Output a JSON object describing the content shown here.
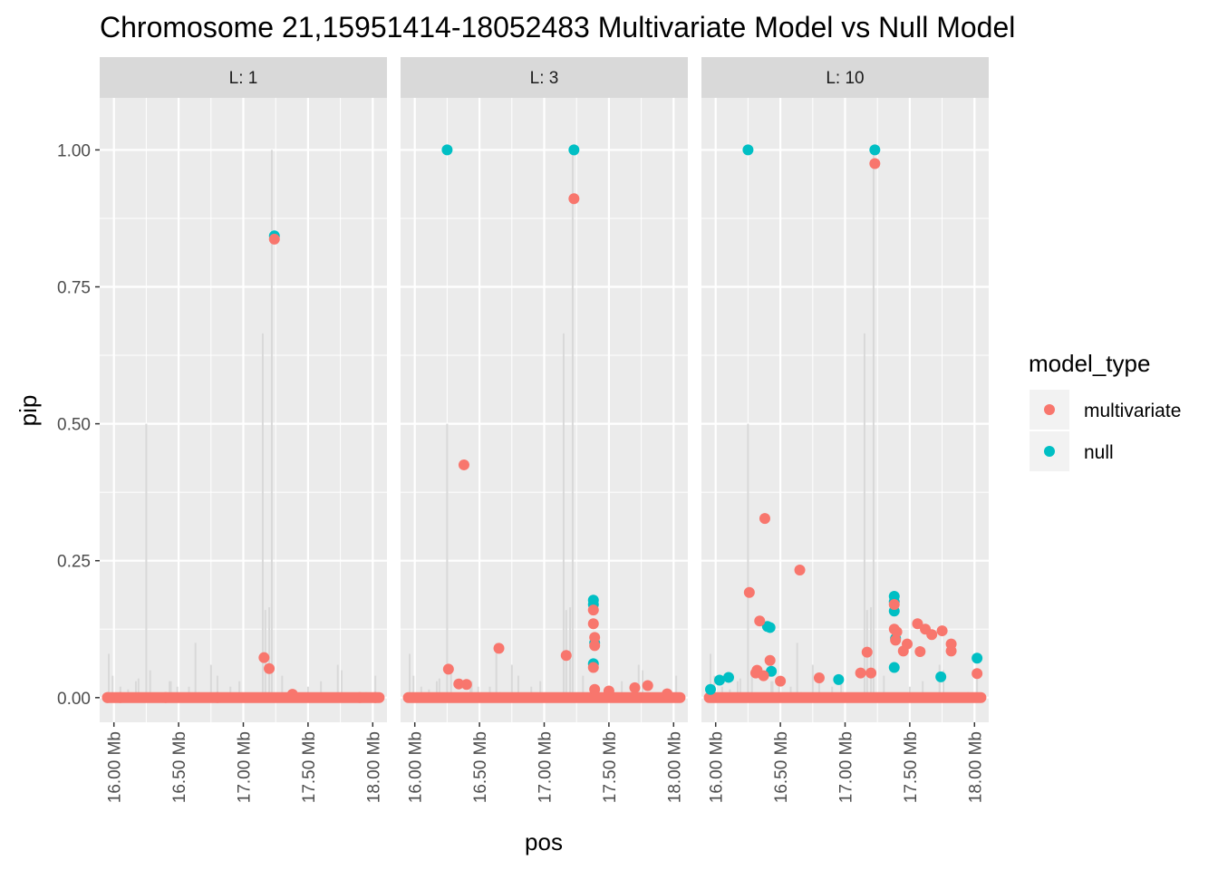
{
  "chart_data": {
    "type": "scatter",
    "title": "Chromosome 21,15951414-18052483 Multivariate Model vs Null Model",
    "xlabel": "pos",
    "ylabel": "pip",
    "xlim_mb": [
      15.89,
      18.11
    ],
    "ylim": [
      -0.045,
      1.095
    ],
    "x_ticks": [
      16.0,
      16.5,
      17.0,
      17.5,
      18.0
    ],
    "x_tick_labels": [
      "16.00 Mb",
      "16.50 Mb",
      "17.00 Mb",
      "17.50 Mb",
      "18.00 Mb"
    ],
    "y_ticks": [
      0,
      0.25,
      0.5,
      0.75,
      1.0
    ],
    "y_tick_labels": [
      "0.00",
      "0.25",
      "0.50",
      "0.75",
      "1.00"
    ],
    "grid": true,
    "legend": {
      "title": "model_type",
      "position": "right",
      "entries": [
        {
          "name": "multivariate",
          "color": "#F8766D"
        },
        {
          "name": "null",
          "color": "#00BFC4"
        }
      ]
    },
    "background_lines": {
      "color": "#d9d9d9",
      "x": [
        15.96,
        15.99,
        16.05,
        16.11,
        16.17,
        16.19,
        16.25,
        16.28,
        16.43,
        16.44,
        16.49,
        16.58,
        16.63,
        16.66,
        16.75,
        16.8,
        16.9,
        16.97,
        17.15,
        17.17,
        17.2,
        17.22,
        17.3,
        17.5,
        17.6,
        17.73,
        17.76,
        17.95,
        18.02
      ],
      "y": [
        0.08,
        0.04,
        0.02,
        0.015,
        0.03,
        0.035,
        0.5,
        0.05,
        0.03,
        0.03,
        0.02,
        0.02,
        0.1,
        0.01,
        0.06,
        0.04,
        0.02,
        0.03,
        0.665,
        0.16,
        0.165,
        1.0,
        0.04,
        0.02,
        0.03,
        0.06,
        0.05,
        0.01,
        0.04
      ]
    },
    "facets": [
      {
        "label": "L: 1",
        "series": [
          {
            "name": "multivariate",
            "x": [
              15.95,
              16.05,
              16.4,
              16.8,
              17.16,
              17.2,
              17.24,
              17.38,
              17.9,
              18.02
            ],
            "y": [
              0.0,
              0.0,
              0.0,
              0.0,
              0.073,
              0.053,
              0.837,
              0.006,
              0.0,
              0.0
            ]
          },
          {
            "name": "null",
            "x": [
              17.24
            ],
            "y": [
              0.843
            ]
          }
        ]
      },
      {
        "label": "L: 3",
        "series": [
          {
            "name": "multivariate",
            "x": [
              16.26,
              16.34,
              16.38,
              16.4,
              16.65,
              17.17,
              17.23,
              17.38,
              17.38,
              17.39,
              17.39,
              17.38,
              17.39,
              17.5,
              17.7,
              17.8,
              17.95
            ],
            "y": [
              0.052,
              0.025,
              0.425,
              0.024,
              0.09,
              0.077,
              0.911,
              0.16,
              0.135,
              0.11,
              0.095,
              0.055,
              0.015,
              0.012,
              0.018,
              0.022,
              0.007
            ]
          },
          {
            "name": "null",
            "x": [
              16.25,
              17.23,
              17.38,
              17.38,
              17.39,
              17.38
            ],
            "y": [
              1.0,
              1.0,
              0.178,
              0.17,
              0.1,
              0.062
            ]
          }
        ]
      },
      {
        "label": "L: 10",
        "series": [
          {
            "name": "multivariate",
            "x": [
              16.26,
              16.34,
              16.38,
              16.42,
              16.65,
              17.17,
              17.23,
              17.38,
              17.38,
              17.39,
              17.4,
              17.45,
              17.48,
              17.56,
              17.58,
              17.62,
              17.67,
              17.75,
              17.82,
              17.82,
              18.02,
              16.32,
              16.31,
              16.37,
              16.8,
              17.12,
              16.5,
              17.2
            ],
            "y": [
              0.192,
              0.14,
              0.327,
              0.068,
              0.233,
              0.083,
              0.975,
              0.17,
              0.125,
              0.105,
              0.12,
              0.085,
              0.098,
              0.135,
              0.084,
              0.125,
              0.115,
              0.122,
              0.098,
              0.085,
              0.044,
              0.05,
              0.045,
              0.04,
              0.036,
              0.045,
              0.03,
              0.045
            ]
          },
          {
            "name": "null",
            "x": [
              15.96,
              16.03,
              16.1,
              16.25,
              16.4,
              16.42,
              16.43,
              16.95,
              17.23,
              17.38,
              17.38,
              17.38,
              17.39,
              17.38,
              17.74,
              18.02
            ],
            "y": [
              0.015,
              0.032,
              0.037,
              1.0,
              0.13,
              0.128,
              0.048,
              0.033,
              1.0,
              0.185,
              0.175,
              0.158,
              0.108,
              0.055,
              0.038,
              0.072
            ]
          }
        ]
      }
    ]
  }
}
